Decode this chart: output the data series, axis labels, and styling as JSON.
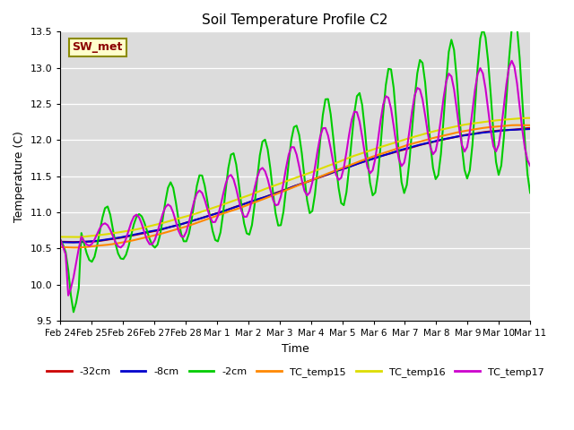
{
  "title": "Soil Temperature Profile C2",
  "xlabel": "Time",
  "ylabel": "Temperature (C)",
  "ylim": [
    9.5,
    13.5
  ],
  "plot_bg": "#dcdcdc",
  "annotation_text": "SW_met",
  "annotation_color": "#8b0000",
  "annotation_bg": "#ffffcc",
  "annotation_border": "#8b8b00",
  "series_order": [
    "-32cm",
    "-8cm",
    "-2cm",
    "TC_temp15",
    "TC_temp16",
    "TC_temp17"
  ],
  "series": {
    "-32cm": {
      "color": "#cc0000",
      "lw": 1.5
    },
    "-8cm": {
      "color": "#0000cc",
      "lw": 1.5
    },
    "-2cm": {
      "color": "#00cc00",
      "lw": 1.5
    },
    "TC_temp15": {
      "color": "#ff8800",
      "lw": 1.5
    },
    "TC_temp16": {
      "color": "#dddd00",
      "lw": 1.5
    },
    "TC_temp17": {
      "color": "#cc00cc",
      "lw": 1.5
    }
  },
  "tick_labels": [
    "Feb 24",
    "Feb 25",
    "Feb 26",
    "Feb 27",
    "Feb 28",
    "Mar 1",
    "Mar 2",
    "Mar 3",
    "Mar 4",
    "Mar 5",
    "Mar 6",
    "Mar 7",
    "Mar 8",
    "Mar 9",
    "Mar 10",
    "Mar 11"
  ]
}
